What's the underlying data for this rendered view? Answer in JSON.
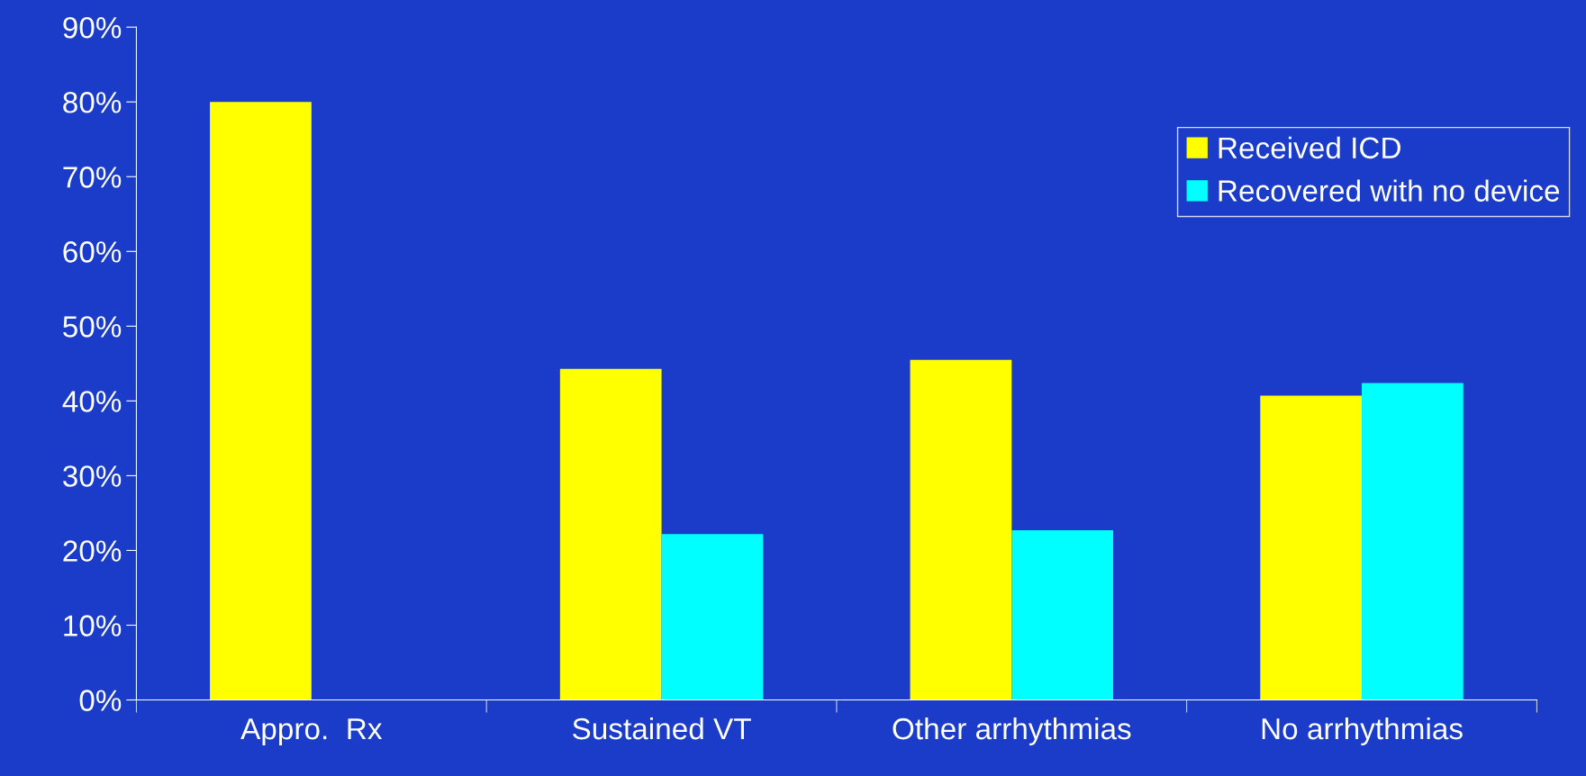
{
  "chart_data": {
    "type": "bar",
    "categories": [
      "Appro.  Rx",
      "Sustained VT",
      "Other arrhythmias",
      "No arrhythmias"
    ],
    "series": [
      {
        "name": "Received ICD",
        "color": "#ffff00",
        "values": [
          80,
          44.3,
          45.5,
          40.7
        ]
      },
      {
        "name": "Recovered with no device",
        "color": "#00ffff",
        "values": [
          null,
          22.2,
          22.7,
          42.4
        ]
      }
    ],
    "ylim": [
      0,
      90
    ],
    "yticks": [
      {
        "value": 0,
        "label": "0%"
      },
      {
        "value": 10,
        "label": "10%"
      },
      {
        "value": 20,
        "label": "20%"
      },
      {
        "value": 30,
        "label": "30%"
      },
      {
        "value": 40,
        "label": "40%"
      },
      {
        "value": 50,
        "label": "50%"
      },
      {
        "value": 60,
        "label": "60%"
      },
      {
        "value": 70,
        "label": "70%"
      },
      {
        "value": 80,
        "label": "80%"
      },
      {
        "value": 90,
        "label": "90%"
      }
    ],
    "grid": false,
    "legend": "top right"
  }
}
